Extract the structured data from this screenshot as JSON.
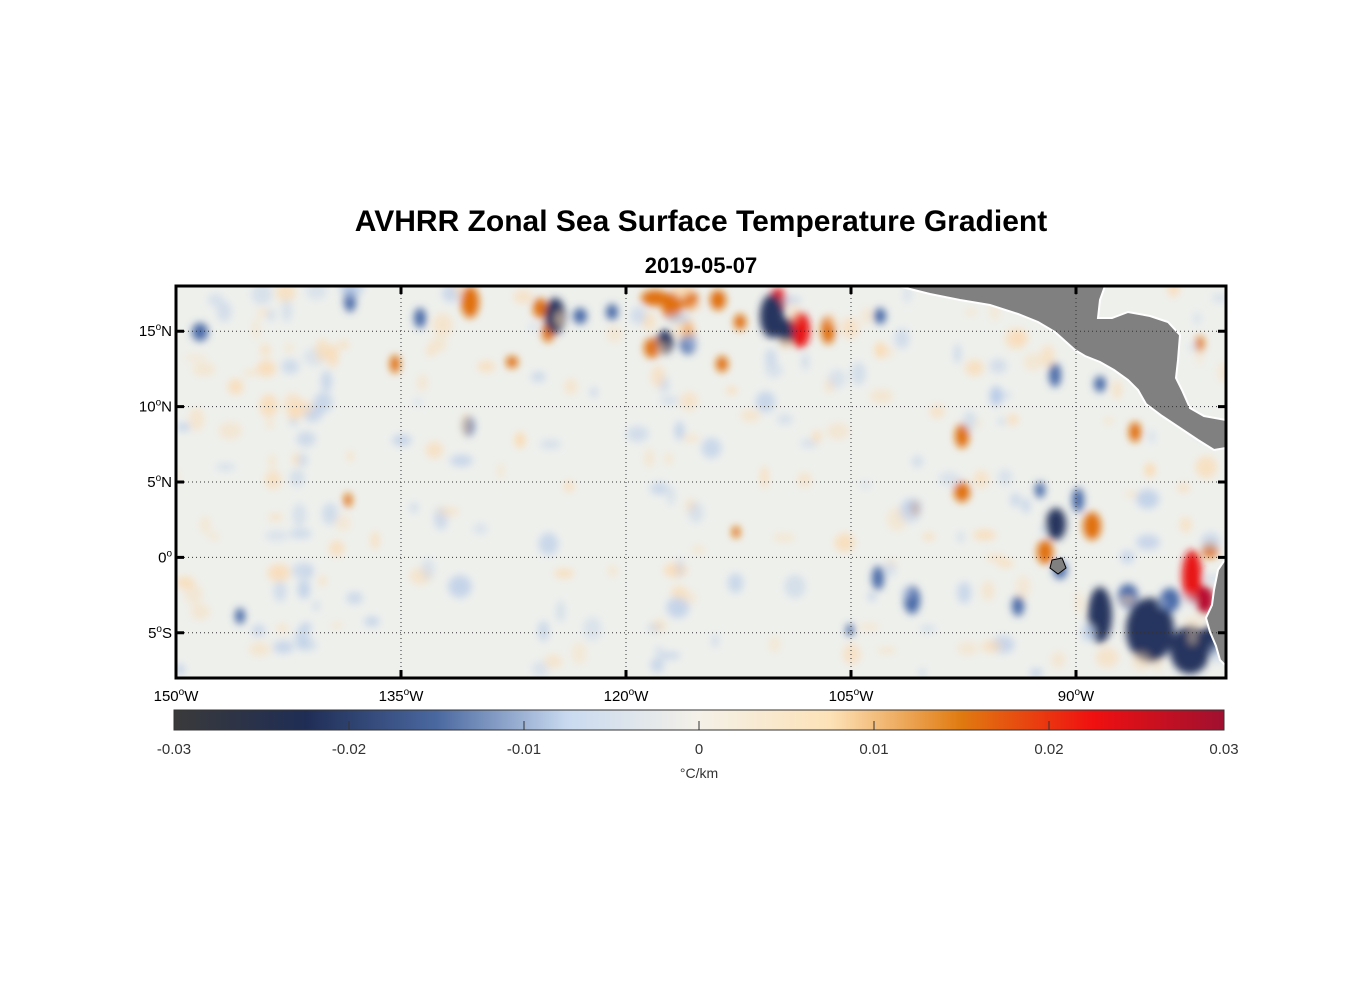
{
  "title": "AVHRR Zonal Sea Surface Temperature Gradient",
  "subtitle": "2019-05-07",
  "map": {
    "lon_range": [
      -150,
      -80
    ],
    "lat_range": [
      -8,
      18
    ],
    "lat_ticks": [
      {
        "value": 15,
        "label": "15°N"
      },
      {
        "value": 10,
        "label": "10°N"
      },
      {
        "value": 5,
        "label": "5°N"
      },
      {
        "value": 0,
        "label": "0°"
      },
      {
        "value": -5,
        "label": "5°S"
      }
    ],
    "lon_ticks": [
      {
        "value": -150,
        "label": "150°W"
      },
      {
        "value": -135,
        "label": "135°W"
      },
      {
        "value": -120,
        "label": "120°W"
      },
      {
        "value": -105,
        "label": "105°W"
      },
      {
        "value": -90,
        "label": "90°W"
      }
    ],
    "land_color": "#808080",
    "grid": "dotted"
  },
  "colorbar": {
    "range": [
      -0.03,
      0.03
    ],
    "ticks": [
      {
        "value": -0.03,
        "label": "-0.03"
      },
      {
        "value": -0.02,
        "label": "-0.02"
      },
      {
        "value": -0.01,
        "label": "-0.01"
      },
      {
        "value": 0,
        "label": "0"
      },
      {
        "value": 0.01,
        "label": "0.01"
      },
      {
        "value": 0.02,
        "label": "0.02"
      },
      {
        "value": 0.03,
        "label": "0.03"
      }
    ],
    "label": "°C/km",
    "colors": [
      "#3a3a3a",
      "#1f2d55",
      "#4a68a0",
      "#c9daf0",
      "#f4f1e8",
      "#fde2b8",
      "#e07a10",
      "#f01010",
      "#a01030"
    ]
  }
}
